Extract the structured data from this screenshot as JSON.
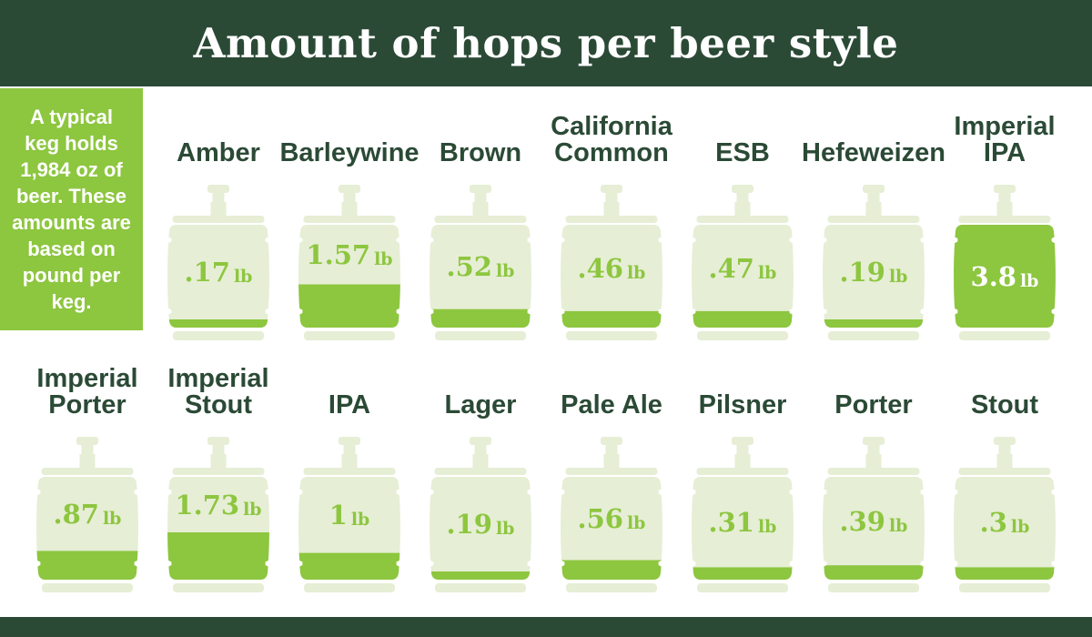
{
  "header": {
    "title": "Amount of hops per beer style"
  },
  "note": {
    "text": "A typical keg holds 1,984 oz of beer. These amounts are based on pound per keg."
  },
  "colors": {
    "dark_green": "#2b4a36",
    "lime_green": "#8dc63f",
    "pale_keg": "#e6eed5",
    "white": "#ffffff"
  },
  "chart_data": {
    "type": "bar",
    "variant": "keg-pictogram-infographic",
    "title": "Amount of hops per beer style",
    "unit": "lb",
    "note": "A typical keg holds 1,984 oz of beer. These amounts are based on pound per keg.",
    "scale_full_keg_lb": 3.8,
    "categories": [
      "Amber",
      "Barleywine",
      "Brown",
      "California Common",
      "ESB",
      "Hefeweizen",
      "Imperial IPA",
      "Imperial Porter",
      "Imperial Stout",
      "IPA",
      "Lager",
      "Pale Ale",
      "Pilsner",
      "Porter",
      "Stout"
    ],
    "values": [
      0.17,
      1.57,
      0.52,
      0.46,
      0.47,
      0.19,
      3.8,
      0.87,
      1.73,
      1,
      0.19,
      0.56,
      0.31,
      0.39,
      0.3
    ],
    "rows": [
      {
        "kegs": [
          {
            "label": "Amber",
            "value": 0.17,
            "display": ".17",
            "fill_pct": 8
          },
          {
            "label": "Barleywine",
            "value": 1.57,
            "display": "1.57",
            "fill_pct": 42
          },
          {
            "label": "Brown",
            "value": 0.52,
            "display": ".52",
            "fill_pct": 18
          },
          {
            "label": "California Common",
            "value": 0.46,
            "display": ".46",
            "fill_pct": 16
          },
          {
            "label": "ESB",
            "value": 0.47,
            "display": ".47",
            "fill_pct": 16
          },
          {
            "label": "Hefeweizen",
            "value": 0.19,
            "display": ".19",
            "fill_pct": 8
          },
          {
            "label": "Imperial IPA",
            "value": 3.8,
            "display": "3.8",
            "fill_pct": 100
          }
        ]
      },
      {
        "kegs": [
          {
            "label": "Imperial Porter",
            "value": 0.87,
            "display": ".87",
            "fill_pct": 28
          },
          {
            "label": "Imperial Stout",
            "value": 1.73,
            "display": "1.73",
            "fill_pct": 46
          },
          {
            "label": "IPA",
            "value": 1,
            "display": "1",
            "fill_pct": 26
          },
          {
            "label": "Lager",
            "value": 0.19,
            "display": ".19",
            "fill_pct": 8
          },
          {
            "label": "Pale Ale",
            "value": 0.56,
            "display": ".56",
            "fill_pct": 19
          },
          {
            "label": "Pilsner",
            "value": 0.31,
            "display": ".31",
            "fill_pct": 12
          },
          {
            "label": "Porter",
            "value": 0.39,
            "display": ".39",
            "fill_pct": 14
          },
          {
            "label": "Stout",
            "value": 0.3,
            "display": ".3",
            "fill_pct": 12
          }
        ]
      }
    ]
  }
}
